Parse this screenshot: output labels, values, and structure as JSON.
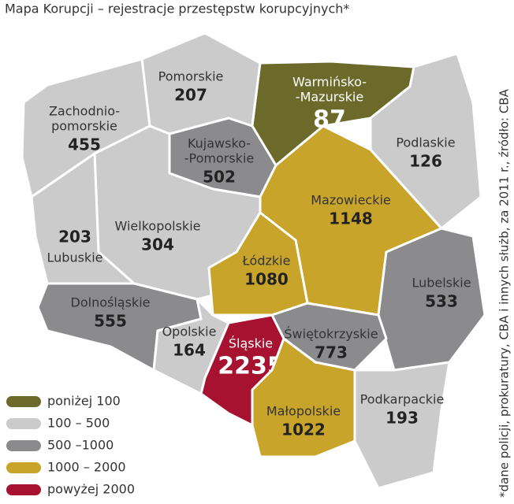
{
  "title": "Mapa Korupcji – rejestracje przestępstw korupcyjnych*",
  "note": "*dane policji, prokuratury, CBA i innych służb, za 2011 r., źródło: CBA",
  "legend": [
    {
      "label": "poniżej 100",
      "color": "#6b6a2b"
    },
    {
      "label": "100 – 500",
      "color": "#cbcbcc"
    },
    {
      "label": "500 –1000",
      "color": "#8b8b8d"
    },
    {
      "label": "1000 – 2000",
      "color": "#c9a42a"
    },
    {
      "label": "powyżej 2000",
      "color": "#a6122f"
    }
  ],
  "regions": [
    {
      "name": [
        "Pomorskie"
      ],
      "value": 207,
      "color": "#cbcbcc"
    },
    {
      "name": [
        "Zachodnio-",
        "pomorskie"
      ],
      "value": 455,
      "color": "#cbcbcc"
    },
    {
      "name": [
        "Warmińsko-",
        "-Mazurskie"
      ],
      "value": 87,
      "color": "#6b6a2b"
    },
    {
      "name": [
        "Podlaskie"
      ],
      "value": 126,
      "color": "#cbcbcc"
    },
    {
      "name": [
        "Kujawsko-",
        "-Pomorskie"
      ],
      "value": 502,
      "color": "#8b8b8d"
    },
    {
      "name": [
        "Wielkopolskie"
      ],
      "value": 304,
      "color": "#cbcbcc"
    },
    {
      "name": [
        "Lubuskie"
      ],
      "value": 203,
      "color": "#cbcbcc"
    },
    {
      "name": [
        "Mazowieckie"
      ],
      "value": 1148,
      "color": "#c9a42a"
    },
    {
      "name": [
        "Łódzkie"
      ],
      "value": 1080,
      "color": "#c9a42a"
    },
    {
      "name": [
        "Lubelskie"
      ],
      "value": 533,
      "color": "#8b8b8d"
    },
    {
      "name": [
        "Dolnośląskie"
      ],
      "value": 555,
      "color": "#8b8b8d"
    },
    {
      "name": [
        "Opolskie"
      ],
      "value": 164,
      "color": "#cbcbcc"
    },
    {
      "name": [
        "Śląskie"
      ],
      "value": 2235,
      "color": "#a6122f"
    },
    {
      "name": [
        "Świętokrzyskie"
      ],
      "value": 773,
      "color": "#8b8b8d"
    },
    {
      "name": [
        "Małopolskie"
      ],
      "value": 1022,
      "color": "#c9a42a"
    },
    {
      "name": [
        "Podkarpackie"
      ],
      "value": 193,
      "color": "#cbcbcc"
    }
  ]
}
